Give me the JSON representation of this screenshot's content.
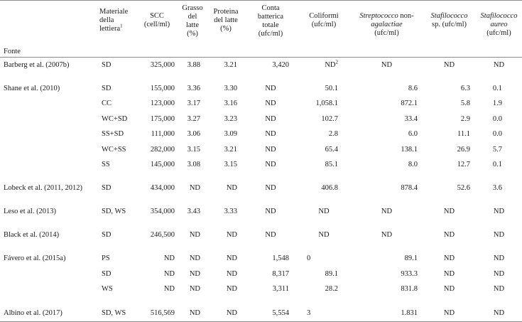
{
  "headers": {
    "fonte": "Fonte",
    "materiale_1": "Materiale",
    "materiale_2": "della",
    "materiale_3": "lettiera",
    "materiale_sup": "1",
    "scc_1": "SCC",
    "scc_2": "(cell/ml)",
    "grasso_1": "Grasso",
    "grasso_2": "del",
    "grasso_3": "latte",
    "grasso_4": "(%)",
    "proteina_1": "Proteina",
    "proteina_2": "del latte",
    "proteina_3": "(%)",
    "conta_1": "Conta",
    "conta_2": "batterica",
    "conta_3": "totale",
    "conta_4": "(ufc/ml)",
    "coliformi_1": "Coliformi",
    "coliformi_2": "(ufc/ml)",
    "strep_1a": "Streptococco",
    "strep_1b": " non-",
    "strep_2": "agalactiae",
    "strep_3": "(ufc/ml)",
    "staf_1": "Stafilococco",
    "staf_2": "sp. (ufc/ml)",
    "aureo_1": "Stafilococco",
    "aureo_2": "aureo",
    "aureo_3": "(ufc/ml)"
  },
  "rows": [
    {
      "fonte": "Barberg et al. (2007b)",
      "mat": "SD",
      "scc": "325,000",
      "gr": "3.88",
      "pr": "3.21",
      "cb": "3,420",
      "coli": "ND",
      "coli_sup": "2",
      "strep": "ND",
      "staf": "ND",
      "aur": "ND"
    },
    {
      "fonte": "Shane et al. (2010)",
      "mat": "SD",
      "scc": "155,000",
      "gr": "3.36",
      "pr": "3.30",
      "cb": "ND",
      "coli": "50.1",
      "strep": "8.6",
      "staf": "6.3",
      "aur": "0.1"
    },
    {
      "fonte": "",
      "mat": "CC",
      "scc": "123,000",
      "gr": "3.17",
      "pr": "3.16",
      "cb": "ND",
      "coli": "1,058.1",
      "strep": "872.1",
      "staf": "5.8",
      "aur": "1.9"
    },
    {
      "fonte": "",
      "mat": "WC+SD",
      "scc": "175,000",
      "gr": "3.27",
      "pr": "3.23",
      "cb": "ND",
      "coli": "102.7",
      "strep": "33.4",
      "staf": "2.9",
      "aur": "0.0"
    },
    {
      "fonte": "",
      "mat": "SS+SD",
      "scc": "111,000",
      "gr": "3.06",
      "pr": "3.09",
      "cb": "ND",
      "coli": "2.8",
      "strep": "6.0",
      "staf": "11.1",
      "aur": "0.0"
    },
    {
      "fonte": "",
      "mat": "WC+SS",
      "scc": "282,000",
      "gr": "3.15",
      "pr": "3.21",
      "cb": "ND",
      "coli": "65.4",
      "strep": "138.1",
      "staf": "26.9",
      "aur": "5.7"
    },
    {
      "fonte": "",
      "mat": "SS",
      "scc": "145,000",
      "gr": "3.08",
      "pr": "3.15",
      "cb": "ND",
      "coli": "85.1",
      "strep": "8.0",
      "staf": "12.7",
      "aur": "0.1"
    },
    {
      "fonte": "Lobeck et al. (2011, 2012)",
      "mat": "SD",
      "scc": "434,000",
      "gr": "ND",
      "pr": "ND",
      "cb": "ND",
      "coli": "406.8",
      "strep": "878.4",
      "staf": "52.6",
      "aur": "3.6"
    },
    {
      "fonte": "Leso et al. (2013)",
      "mat": "SD, WS",
      "scc": "354,000",
      "gr": "3.43",
      "pr": "3.33",
      "cb": "ND",
      "coli": "ND",
      "strep": "ND",
      "staf": "ND",
      "aur": "ND"
    },
    {
      "fonte": "Black et al. (2014)",
      "mat": "SD",
      "scc": "246,500",
      "gr": "ND",
      "pr": "ND",
      "cb": "ND",
      "coli": "ND",
      "strep": "ND",
      "staf": "ND",
      "aur": "ND"
    },
    {
      "fonte": "Fávero et al. (2015a)",
      "mat": "PS",
      "scc": "ND",
      "gr": "ND",
      "pr": "ND",
      "cb": "1,548",
      "coli": "0",
      "strep": "89.1",
      "staf": "ND",
      "aur": "ND"
    },
    {
      "fonte": "",
      "mat": "SD",
      "scc": "ND",
      "gr": "ND",
      "pr": "ND",
      "cb": "8,317",
      "coli": "89.1",
      "strep": "933.3",
      "staf": "ND",
      "aur": "ND"
    },
    {
      "fonte": "",
      "mat": "WS",
      "scc": "ND",
      "gr": "ND",
      "pr": "ND",
      "cb": "3,311",
      "coli": "28.2",
      "strep": "831.8",
      "staf": "ND",
      "aur": "ND"
    },
    {
      "fonte": "Albino et al. (2017)",
      "mat": "SD, WS",
      "scc": "516,569",
      "gr": "ND",
      "pr": "ND",
      "cb": "5,554",
      "coli": "3",
      "strep": "1.831",
      "staf": "ND",
      "aur": "ND"
    }
  ]
}
